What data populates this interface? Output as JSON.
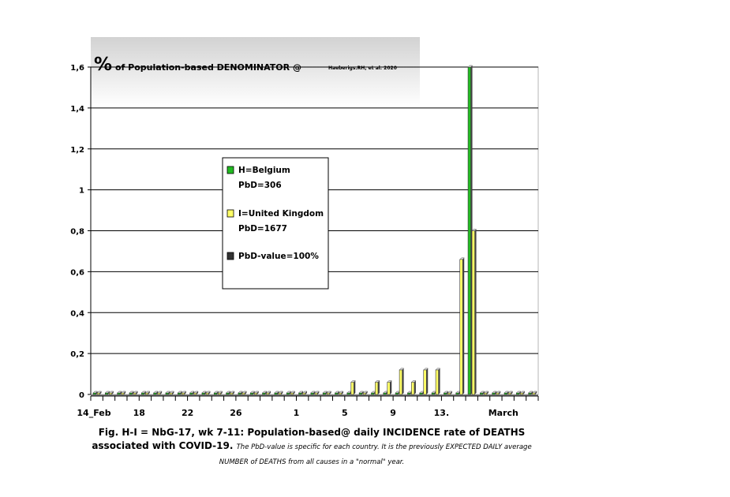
{
  "chart_data": {
    "type": "bar",
    "title_symbol": "%",
    "title_text": "of Population-based DENOMINATOR @",
    "title_credit": "Haeberigs.RH, et al. 2020",
    "ylim": [
      0,
      1.6
    ],
    "y_ticks": [
      "1,6",
      "1,4",
      "1,2",
      "1",
      "0,8",
      "0,6",
      "0,4",
      "0,2",
      "0"
    ],
    "y_tick_values": [
      1.6,
      1.4,
      1.2,
      1.0,
      0.8,
      0.6,
      0.4,
      0.2,
      0.0
    ],
    "x_ticks": [
      {
        "label": "14_Feb",
        "day": 0
      },
      {
        "label": "18",
        "day": 4
      },
      {
        "label": "22",
        "day": 8
      },
      {
        "label": "26",
        "day": 12
      },
      {
        "label": "1",
        "day": 17
      },
      {
        "label": "5",
        "day": 21
      },
      {
        "label": "9",
        "day": 25
      },
      {
        "label": "13.",
        "day": 29
      },
      {
        "label": "March",
        "day": 33
      }
    ],
    "series": [
      {
        "name": "H=Belgium",
        "color": "#22bb22",
        "values": [
          0,
          0,
          0,
          0,
          0,
          0,
          0,
          0,
          0,
          0,
          0,
          0,
          0,
          0,
          0,
          0,
          0,
          0,
          0,
          0,
          0,
          0,
          0,
          0,
          0,
          0,
          0,
          0,
          0,
          0,
          0,
          1.6,
          0,
          0,
          0,
          0,
          0
        ]
      },
      {
        "name": "I=United Kingdom",
        "color": "#ffff66",
        "values": [
          0,
          0,
          0,
          0,
          0,
          0,
          0,
          0,
          0,
          0,
          0,
          0,
          0,
          0,
          0,
          0,
          0,
          0,
          0,
          0,
          0,
          0.06,
          0,
          0.06,
          0.06,
          0.12,
          0.06,
          0.12,
          0.12,
          0,
          0.66,
          0.8,
          0,
          0,
          0,
          0,
          0
        ]
      }
    ],
    "legend": {
      "placement": "center-left",
      "entries": [
        {
          "label": "H=Belgium",
          "sub": "PbD=306",
          "color": "#22bb22"
        },
        {
          "label": "I=United Kingdom",
          "sub": "PbD=1677",
          "color": "#ffff66"
        },
        {
          "label": "PbD-value=100%",
          "sub": "",
          "color": "#333333"
        }
      ]
    },
    "grid": true
  },
  "caption": {
    "main": "Fig. H-I = NbG-17, wk 7-11: Population-based@ daily INCIDENCE rate of DEATHS associated with COVID-19.",
    "italic": "The PbD-value is specific for each country. It is the previously EXPECTED DAILY average NUMBER of DEATHS from all causes in a \"normal\" year."
  }
}
